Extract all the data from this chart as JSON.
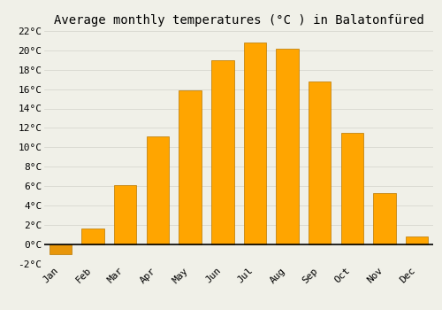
{
  "title": "Average monthly temperatures (°C ) in Balatonfüred",
  "months": [
    "Jan",
    "Feb",
    "Mar",
    "Apr",
    "May",
    "Jun",
    "Jul",
    "Aug",
    "Sep",
    "Oct",
    "Nov",
    "Dec"
  ],
  "values": [
    -1.0,
    1.6,
    6.1,
    11.1,
    15.9,
    19.0,
    20.8,
    20.2,
    16.8,
    11.5,
    5.3,
    0.8
  ],
  "bar_color": "#FFA500",
  "bar_color_neg": "#E8960A",
  "bar_edge_color": "#B87800",
  "ylim": [
    -2,
    22
  ],
  "yticks": [
    -2,
    0,
    2,
    4,
    6,
    8,
    10,
    12,
    14,
    16,
    18,
    20,
    22
  ],
  "ytick_labels": [
    "-2°C",
    "0°C",
    "2°C",
    "4°C",
    "6°C",
    "8°C",
    "10°C",
    "12°C",
    "14°C",
    "16°C",
    "18°C",
    "20°C",
    "22°C"
  ],
  "background_color": "#F0F0E8",
  "grid_color": "#D8D8D0",
  "title_fontsize": 10,
  "tick_fontsize": 8,
  "bar_width": 0.7
}
